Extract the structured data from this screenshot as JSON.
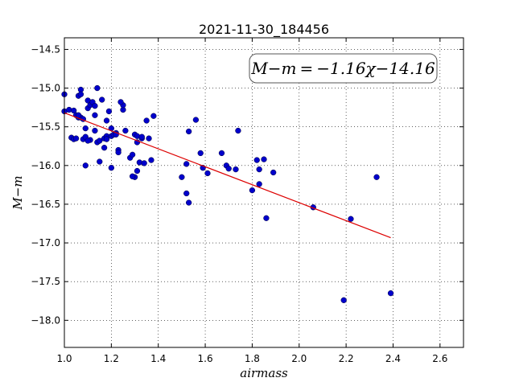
{
  "chart_data": {
    "type": "scatter",
    "title": "2021-11-30_184456",
    "xlabel": "airmass",
    "ylabel": "M−m",
    "xlim": [
      1.0,
      2.7
    ],
    "ylim": [
      -18.35,
      -14.35
    ],
    "xticks": [
      1.0,
      1.2,
      1.4,
      1.6,
      1.8,
      2.0,
      2.2,
      2.4,
      2.6
    ],
    "xtick_labels": [
      "1.0",
      "1.2",
      "1.4",
      "1.6",
      "1.8",
      "2.0",
      "2.2",
      "2.4",
      "2.6"
    ],
    "yticks": [
      -14.5,
      -15.0,
      -15.5,
      -16.0,
      -16.5,
      -17.0,
      -17.5,
      -18.0
    ],
    "ytick_labels": [
      "−14.5",
      "−15.0",
      "−15.5",
      "−16.0",
      "−16.5",
      "−17.0",
      "−17.5",
      "−18.0"
    ],
    "grid": true,
    "annotation": "M−m = −1.16χ−14.16",
    "colors": {
      "points": "#0000cc",
      "fit": "#dd0000"
    },
    "fit": {
      "slope": -1.16,
      "intercept": -14.16,
      "x_range": [
        1.0,
        2.39
      ]
    },
    "points": {
      "x": [
        1.0,
        1.0,
        1.02,
        1.03,
        1.04,
        1.04,
        1.05,
        1.06,
        1.06,
        1.07,
        1.07,
        1.08,
        1.08,
        1.09,
        1.09,
        1.1,
        1.1,
        1.11,
        1.12,
        1.13,
        1.13,
        1.14,
        1.14,
        1.15,
        1.15,
        1.16,
        1.17,
        1.18,
        1.18,
        1.19,
        1.2,
        1.2,
        1.21,
        1.22,
        1.23,
        1.23,
        1.25,
        1.26,
        1.28,
        1.29,
        1.3,
        1.31,
        1.31,
        1.32,
        1.33,
        1.34,
        1.35,
        1.36,
        1.37,
        1.38,
        1.05,
        1.09,
        1.11,
        1.07,
        1.13,
        1.17,
        1.2,
        1.22,
        1.25,
        1.3,
        1.31,
        1.33,
        1.5,
        1.52,
        1.52,
        1.53,
        1.53,
        1.56,
        1.58,
        1.59,
        1.61,
        1.67,
        1.69,
        1.7,
        1.73,
        1.74,
        1.8,
        1.82,
        1.83,
        1.83,
        1.85,
        1.86,
        1.89,
        2.06,
        2.19,
        2.22,
        2.33,
        2.39,
        1.1,
        1.18,
        1.24,
        1.29,
        1.06
      ],
      "y": [
        -15.08,
        -15.3,
        -15.28,
        -15.64,
        -15.29,
        -15.66,
        -15.35,
        -15.38,
        -15.1,
        -15.02,
        -15.38,
        -15.4,
        -15.66,
        -15.63,
        -15.52,
        -15.16,
        -15.26,
        -15.22,
        -15.18,
        -15.35,
        -15.23,
        -15.0,
        -15.7,
        -15.95,
        -15.68,
        -15.15,
        -15.65,
        -15.62,
        -15.42,
        -15.3,
        -15.52,
        -15.62,
        -15.6,
        -15.58,
        -15.8,
        -15.83,
        -15.28,
        -15.55,
        -15.9,
        -15.86,
        -15.6,
        -15.7,
        -16.07,
        -15.96,
        -15.65,
        -15.97,
        -15.42,
        -15.65,
        -15.93,
        -15.36,
        -15.65,
        -16.0,
        -15.67,
        -15.08,
        -15.55,
        -15.77,
        -16.03,
        -15.6,
        -15.22,
        -16.15,
        -15.62,
        -15.63,
        -16.15,
        -15.98,
        -16.36,
        -16.48,
        -15.56,
        -15.41,
        -15.84,
        -16.03,
        -16.1,
        -15.84,
        -16.0,
        -16.04,
        -16.05,
        -15.55,
        -16.32,
        -15.93,
        -16.24,
        -16.05,
        -15.92,
        -16.68,
        -16.09,
        -16.54,
        -17.74,
        -16.69,
        -16.15,
        -17.65,
        -15.68,
        -15.66,
        -15.18,
        -16.14,
        -15.35
      ]
    }
  }
}
